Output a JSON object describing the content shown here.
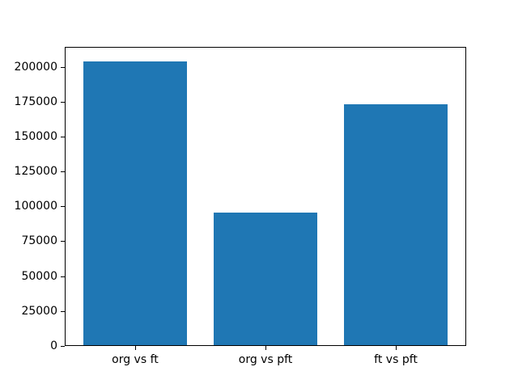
{
  "chart_data": {
    "type": "bar",
    "title": "",
    "xlabel": "",
    "ylabel": "",
    "categories": [
      "org vs ft",
      "org vs pft",
      "ft vs pft"
    ],
    "values": [
      204000,
      95500,
      173000
    ],
    "yticks": [
      0,
      25000,
      50000,
      75000,
      100000,
      125000,
      150000,
      175000,
      200000
    ],
    "ylim": [
      0,
      214200
    ],
    "xlim": [
      -0.54,
      2.54
    ],
    "bar_positions": [
      0,
      1,
      2
    ],
    "bar_width_frac": 0.8,
    "bar_color": "#1f77b4",
    "axes_color": "#000000",
    "background_color": "#ffffff",
    "grid": false,
    "legend": false
  }
}
